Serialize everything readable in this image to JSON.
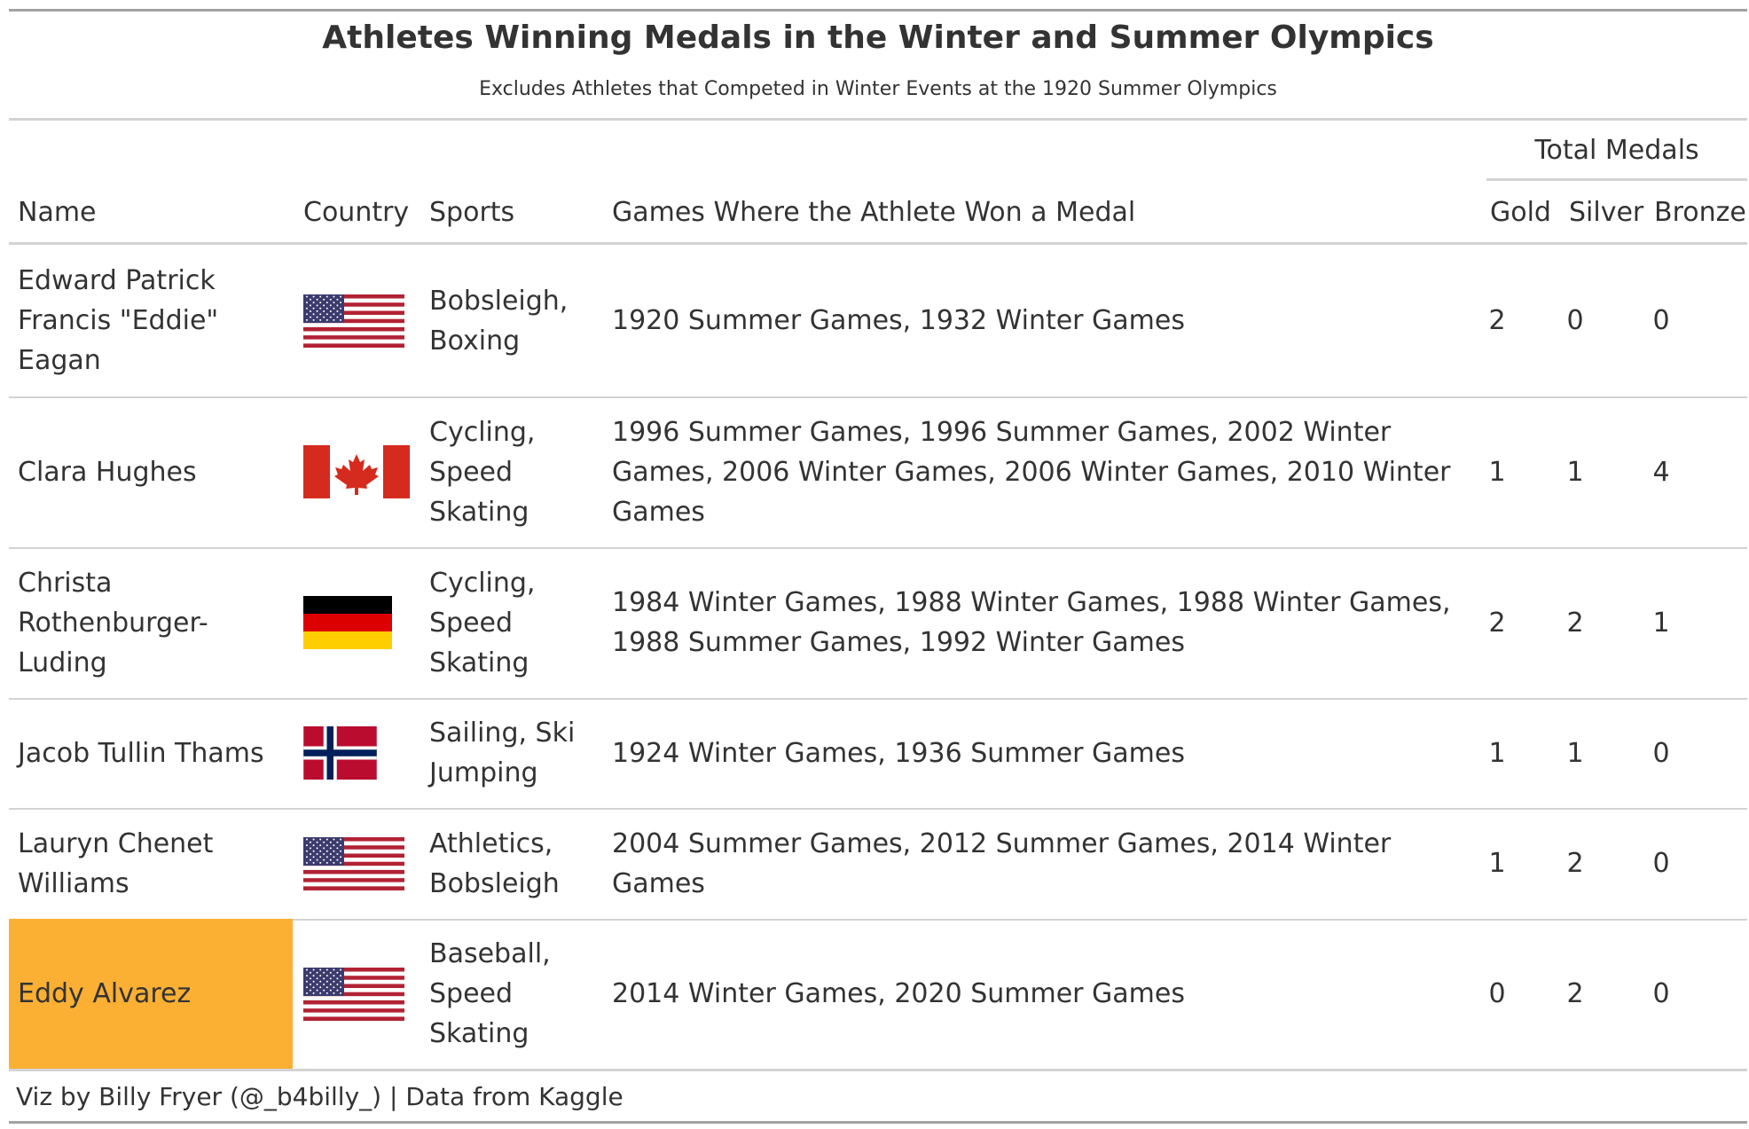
{
  "title": "Athletes Winning Medals in the Winter and Summer Olympics",
  "subtitle": "Excludes Athletes that Competed in Winter Events at the 1920 Summer Olympics",
  "source": "Viz by Billy Fryer (@_b4billy_) | Data from Kaggle",
  "colors": {
    "highlight": "#fbb033",
    "rule": "#d3d3d3",
    "text": "#333333"
  },
  "chart_data": {
    "type": "table",
    "spanner": "Total Medals",
    "columns": [
      "Name",
      "Country",
      "Sports",
      "Games Where the Athlete Won a Medal",
      "Gold",
      "Silver",
      "Bronze"
    ],
    "rows": [
      {
        "name": "Edward Patrick Francis \"Eddie\" Eagan",
        "country_flag": "us-flag-icon",
        "sports": "Bobsleigh, Boxing",
        "games": "1920 Summer Games, 1932 Winter Games",
        "gold": 2,
        "silver": 0,
        "bronze": 0
      },
      {
        "name": "Clara Hughes",
        "country_flag": "canada-flag-icon",
        "sports": "Cycling, Speed Skating",
        "games": "1996 Summer Games, 1996 Summer Games, 2002 Winter Games, 2006 Winter Games, 2006 Winter Games, 2010 Winter Games",
        "gold": 1,
        "silver": 1,
        "bronze": 4
      },
      {
        "name": "Christa Rothenburger-Luding",
        "country_flag": "germany-flag-icon",
        "sports": "Cycling, Speed Skating",
        "games": "1984 Winter Games, 1988 Winter Games, 1988 Winter Games, 1988 Summer Games, 1992 Winter Games",
        "gold": 2,
        "silver": 2,
        "bronze": 1
      },
      {
        "name": "Jacob Tullin Thams",
        "country_flag": "norway-flag-icon",
        "sports": "Sailing, Ski Jumping",
        "games": "1924 Winter Games, 1936 Summer Games",
        "gold": 1,
        "silver": 1,
        "bronze": 0
      },
      {
        "name": "Lauryn Chenet Williams",
        "country_flag": "us-flag-icon",
        "sports": "Athletics, Bobsleigh",
        "games": "2004 Summer Games, 2012 Summer Games, 2014 Winter Games",
        "gold": 1,
        "silver": 2,
        "bronze": 0
      },
      {
        "name": "Eddy Alvarez",
        "country_flag": "us-flag-icon",
        "sports": "Baseball, Speed Skating",
        "games": "2014 Winter Games, 2020 Summer Games",
        "gold": 0,
        "silver": 2,
        "bronze": 0,
        "highlighted": true
      }
    ]
  }
}
